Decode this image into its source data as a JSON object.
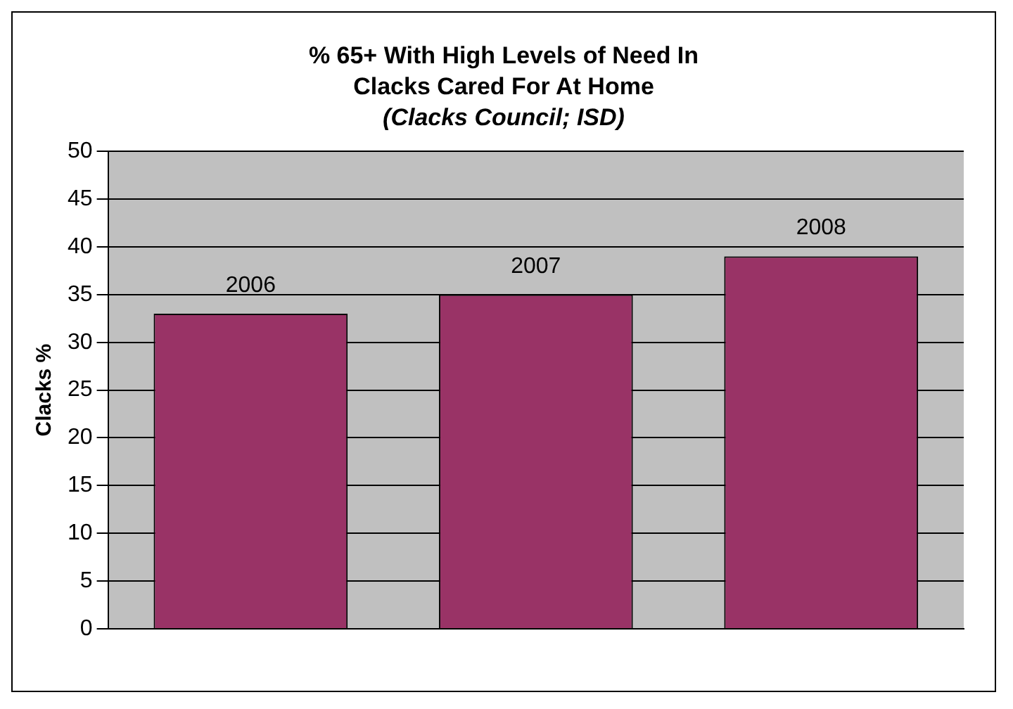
{
  "chart_data": {
    "type": "bar",
    "title": "% 65+ With High Levels of Need In Clacks Cared For At Home",
    "subtitle": "(Clacks Council; ISD)",
    "ylabel": "Clacks %",
    "categories": [
      "2006",
      "2007",
      "2008"
    ],
    "values": [
      33,
      35,
      39
    ],
    "color": "#993366",
    "ylim": [
      0,
      50
    ],
    "yticks": [
      0,
      5,
      10,
      15,
      20,
      25,
      30,
      35,
      40,
      45,
      50
    ],
    "grid": "y",
    "tick_labels": "y"
  }
}
